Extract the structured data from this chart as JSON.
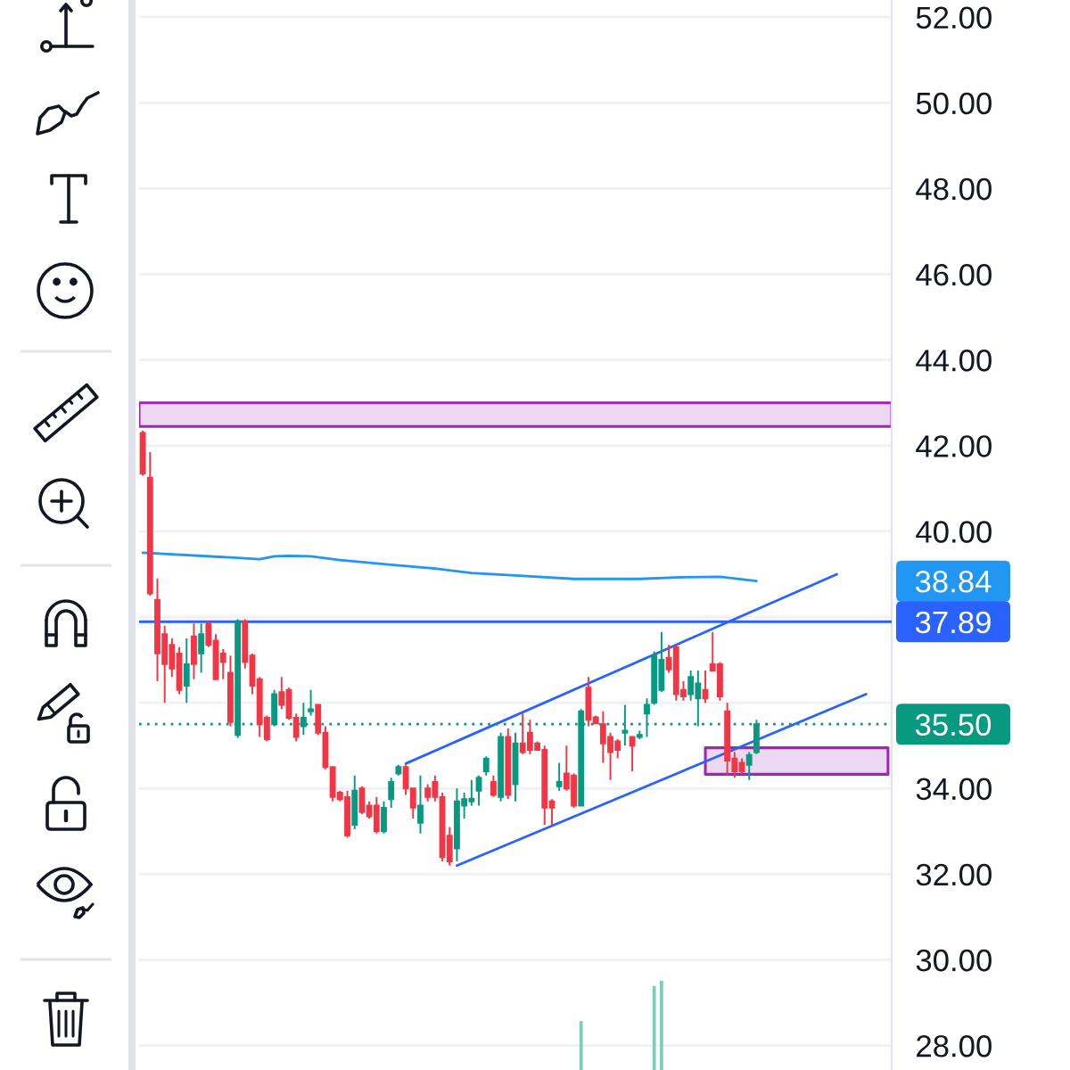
{
  "chart_data": {
    "type": "candlestick",
    "categories": [
      null,
      null,
      null,
      null,
      null,
      null,
      null,
      null,
      null,
      null,
      null,
      null,
      null,
      null,
      null,
      null,
      null,
      null,
      null,
      null,
      null,
      null,
      null,
      null,
      null,
      null,
      null,
      null,
      null,
      null,
      null,
      null,
      null,
      null,
      null,
      null,
      null,
      null,
      null,
      null,
      null,
      null,
      null,
      null,
      null,
      null,
      null,
      null,
      null,
      null,
      null,
      null,
      null,
      null,
      null,
      null,
      null,
      null,
      null,
      null,
      null,
      null,
      null,
      null,
      null,
      null,
      null,
      null,
      null,
      null,
      null,
      null,
      null,
      null,
      null,
      null,
      null,
      null,
      null,
      null,
      null,
      null,
      null,
      null,
      null,
      null,
      null,
      null,
      null,
      null,
      null,
      null,
      null,
      null,
      null,
      null,
      null,
      null,
      null,
      null,
      null,
      null,
      null
    ],
    "ohlc": [
      [
        42.3,
        42.35,
        41.3,
        41.35
      ],
      [
        41.25,
        41.85,
        38.5,
        38.55
      ],
      [
        38.4,
        38.9,
        36.5,
        37.15
      ],
      [
        37.6,
        37.8,
        36.0,
        36.9
      ],
      [
        37.35,
        37.5,
        36.6,
        36.8
      ],
      [
        37.15,
        37.3,
        36.2,
        36.3
      ],
      [
        36.4,
        37.5,
        36.0,
        36.9
      ],
      [
        37.55,
        37.85,
        36.55,
        36.9
      ],
      [
        37.15,
        37.85,
        36.7,
        37.6
      ],
      [
        37.85,
        37.9,
        37.3,
        37.35
      ],
      [
        37.45,
        37.6,
        36.55,
        36.55
      ],
      [
        37.15,
        37.25,
        36.55,
        36.95
      ],
      [
        36.7,
        37.1,
        35.45,
        35.55
      ],
      [
        35.25,
        37.95,
        35.18,
        37.9
      ],
      [
        37.9,
        37.95,
        36.8,
        36.95
      ],
      [
        37.1,
        37.15,
        36.2,
        36.4
      ],
      [
        36.55,
        36.6,
        35.2,
        35.5
      ],
      [
        35.65,
        35.7,
        35.1,
        35.15
      ],
      [
        35.5,
        36.3,
        35.45,
        36.2
      ],
      [
        36.25,
        36.6,
        35.85,
        35.95
      ],
      [
        36.3,
        36.35,
        35.6,
        35.65
      ],
      [
        35.65,
        35.75,
        35.1,
        35.2
      ],
      [
        35.45,
        36.0,
        35.25,
        35.65
      ],
      [
        35.8,
        36.3,
        35.7,
        35.85
      ],
      [
        35.95,
        35.95,
        35.25,
        35.3
      ],
      [
        35.3,
        35.45,
        34.45,
        34.5
      ],
      [
        34.5,
        34.5,
        33.7,
        33.8
      ],
      [
        33.9,
        33.95,
        33.7,
        33.75
      ],
      [
        33.8,
        33.95,
        32.85,
        32.9
      ],
      [
        33.15,
        34.3,
        33.05,
        33.95
      ],
      [
        34.0,
        34.05,
        33.4,
        33.45
      ],
      [
        33.6,
        33.7,
        33.3,
        33.35
      ],
      [
        33.6,
        33.8,
        32.95,
        33.0
      ],
      [
        33.0,
        33.7,
        32.95,
        33.55
      ],
      [
        33.75,
        34.25,
        33.55,
        34.15
      ],
      [
        34.35,
        34.55,
        34.3,
        34.5
      ],
      [
        34.5,
        34.55,
        33.85,
        34.0
      ],
      [
        34.0,
        34.0,
        33.3,
        33.55
      ],
      [
        33.2,
        34.3,
        32.95,
        33.6
      ],
      [
        34.0,
        34.1,
        33.7,
        33.8
      ],
      [
        34.15,
        34.3,
        33.7,
        33.8
      ],
      [
        33.8,
        33.9,
        32.3,
        32.4
      ],
      [
        32.9,
        33.1,
        32.2,
        32.3
      ],
      [
        32.6,
        34.0,
        32.3,
        33.7
      ],
      [
        33.6,
        33.9,
        33.3,
        33.75
      ],
      [
        33.7,
        34.2,
        33.6,
        33.76
      ],
      [
        33.95,
        34.3,
        33.6,
        34.25
      ],
      [
        34.4,
        34.75,
        34.3,
        34.7
      ],
      [
        34.15,
        34.3,
        33.8,
        33.85
      ],
      [
        33.8,
        35.3,
        33.7,
        35.2
      ],
      [
        35.2,
        35.4,
        33.75,
        33.85
      ],
      [
        34.1,
        35.3,
        33.7,
        35.05
      ],
      [
        35.05,
        35.75,
        34.8,
        34.85
      ],
      [
        35.3,
        35.6,
        34.8,
        34.9
      ],
      [
        35.05,
        35.1,
        34.9,
        34.9
      ],
      [
        34.9,
        35.0,
        33.15,
        33.55
      ],
      [
        33.7,
        33.75,
        33.15,
        33.55
      ],
      [
        34.05,
        34.6,
        33.95,
        34.15
      ],
      [
        34.35,
        35.0,
        33.95,
        34.0
      ],
      [
        34.3,
        34.35,
        33.55,
        33.6
      ],
      [
        33.6,
        35.85,
        33.6,
        35.8
      ],
      [
        36.35,
        36.6,
        35.45,
        35.6
      ],
      [
        35.66,
        35.7,
        35.5,
        35.52
      ],
      [
        35.5,
        35.8,
        34.6,
        35.05
      ],
      [
        35.2,
        35.3,
        34.2,
        34.85
      ],
      [
        35.1,
        35.15,
        34.7,
        34.9
      ],
      [
        35.3,
        35.95,
        35.0,
        35.35
      ],
      [
        35.2,
        35.2,
        34.4,
        35.0
      ],
      [
        35.2,
        35.35,
        35.15,
        35.25
      ],
      [
        35.75,
        36.1,
        35.2,
        35.95
      ],
      [
        36.0,
        37.2,
        35.95,
        37.1
      ],
      [
        36.3,
        37.65,
        36.25,
        37.0
      ],
      [
        37.05,
        37.35,
        36.7,
        36.78
      ],
      [
        37.3,
        37.35,
        36.05,
        36.2
      ],
      [
        36.3,
        36.5,
        36.05,
        36.15
      ],
      [
        36.2,
        36.75,
        36.05,
        36.6
      ],
      [
        36.1,
        36.75,
        35.45,
        36.45
      ],
      [
        36.3,
        36.75,
        36.0,
        36.1
      ],
      [
        36.9,
        37.65,
        36.75,
        36.75
      ],
      [
        36.9,
        36.95,
        36.05,
        36.15
      ],
      [
        35.8,
        36.0,
        34.3,
        34.65
      ],
      [
        34.7,
        34.85,
        34.25,
        34.4
      ],
      [
        34.6,
        34.7,
        34.35,
        34.4
      ],
      [
        34.55,
        34.85,
        34.2,
        34.78
      ],
      [
        34.85,
        35.6,
        34.8,
        35.5
      ],
      null,
      null,
      null,
      null,
      null,
      null,
      null,
      null,
      null,
      null,
      null,
      null,
      null,
      null,
      null,
      null,
      null,
      null
    ],
    "colors": [
      "#f23645",
      "#f23645",
      "#f23645",
      "#f23645",
      "#f23645",
      "#f23645",
      "#089981",
      "#f23645",
      "#089981",
      "#f23645",
      "#f23645",
      "#f23645",
      "#f23645",
      "#089981",
      "#f23645",
      "#f23645",
      "#f23645",
      "#f23645",
      "#089981",
      "#f23645",
      "#f23645",
      "#f23645",
      "#089981",
      "#089981",
      "#f23645",
      "#f23645",
      "#f23645",
      "#f23645",
      "#f23645",
      "#089981",
      "#f23645",
      "#f23645",
      "#f23645",
      "#089981",
      "#089981",
      "#089981",
      "#f23645",
      "#f23645",
      "#089981",
      "#f23645",
      "#f23645",
      "#f23645",
      "#f23645",
      "#089981",
      "#089981",
      "#089981",
      "#089981",
      "#089981",
      "#f23645",
      "#089981",
      "#f23645",
      "#089981",
      "#f23645",
      "#f23645",
      "#f23645",
      "#f23645",
      "#f23645",
      "#089981",
      "#f23645",
      "#f23645",
      "#089981",
      "#f23645",
      "#f23645",
      "#f23645",
      "#f23645",
      "#f23645",
      "#089981",
      "#f23645",
      "#089981",
      "#089981",
      "#089981",
      "#089981",
      "#f23645",
      "#f23645",
      "#f23645",
      "#089981",
      "#089981",
      "#f23645",
      "#f23645",
      "#f23645",
      "#f23645",
      "#f23645",
      "#f23645",
      "#089981",
      "#089981",
      null,
      null,
      null,
      null,
      null,
      null,
      null,
      null,
      null,
      null,
      null,
      null,
      null,
      null,
      null,
      null,
      null,
      null
    ],
    "series": [
      {
        "type": "line",
        "color": "#2196f3",
        "values": [
          39.5,
          null,
          null,
          null,
          null,
          null,
          null,
          null,
          null,
          null,
          null,
          39.4,
          null,
          null,
          null,
          null,
          39.35,
          null,
          39.42,
          null,
          39.43,
          null,
          null,
          39.42,
          null,
          null,
          null,
          39.33,
          null,
          null,
          null,
          null,
          null,
          null,
          39.22,
          null,
          null,
          null,
          null,
          null,
          39.13,
          null,
          null,
          null,
          null,
          39.03,
          null,
          null,
          null,
          null,
          null,
          38.97,
          null,
          null,
          null,
          null,
          null,
          null,
          null,
          38.89,
          null,
          null,
          null,
          null,
          null,
          null,
          null,
          null,
          38.89,
          null,
          null,
          null,
          null,
          null,
          38.93,
          null,
          null,
          null,
          null,
          38.94,
          null,
          null,
          null,
          null,
          38.84,
          null,
          null,
          null,
          null,
          null,
          null,
          null,
          null,
          null,
          null,
          null,
          null,
          null,
          null,
          null,
          null,
          null,
          null
        ]
      },
      {
        "type": "line",
        "color": "#2962ff",
        "values": [
          null,
          null,
          null,
          null,
          null,
          null,
          null,
          null,
          null,
          null,
          null,
          null,
          null,
          null,
          null,
          null,
          null,
          null,
          null,
          null,
          null,
          null,
          null,
          null,
          null,
          null,
          null,
          null,
          null,
          null,
          null,
          null,
          null,
          null,
          null,
          null,
          34.58,
          null,
          null,
          null,
          null,
          null,
          null,
          null,
          null,
          null,
          null,
          null,
          null,
          null,
          null,
          null,
          null,
          null,
          null,
          null,
          null,
          null,
          null,
          null,
          null,
          null,
          null,
          null,
          null,
          null,
          null,
          null,
          null,
          null,
          null,
          null,
          null,
          null,
          null,
          null,
          null,
          null,
          null,
          null,
          null,
          null,
          null,
          null,
          null,
          null,
          null,
          null,
          null,
          null,
          null,
          null,
          null,
          null,
          null,
          39.0,
          null,
          null,
          null,
          null,
          null,
          null,
          null
        ]
      },
      {
        "type": "line",
        "color": "#2962ff",
        "values": [
          null,
          null,
          null,
          null,
          null,
          null,
          null,
          null,
          null,
          null,
          null,
          null,
          null,
          null,
          null,
          null,
          null,
          null,
          null,
          null,
          null,
          null,
          null,
          null,
          null,
          null,
          null,
          null,
          null,
          null,
          null,
          null,
          null,
          null,
          null,
          null,
          null,
          null,
          null,
          null,
          null,
          null,
          null,
          32.2,
          null,
          null,
          null,
          null,
          null,
          null,
          null,
          null,
          null,
          null,
          null,
          null,
          null,
          null,
          null,
          null,
          null,
          null,
          null,
          null,
          null,
          null,
          null,
          null,
          null,
          null,
          null,
          null,
          null,
          null,
          null,
          null,
          null,
          null,
          null,
          null,
          null,
          null,
          null,
          null,
          null,
          null,
          null,
          null,
          null,
          null,
          null,
          null,
          null,
          null,
          null,
          null,
          null,
          null,
          null,
          36.2,
          null,
          null,
          null
        ]
      },
      {
        "type": "line",
        "color": "#9c27b0",
        "values": [
          null,
          null,
          null,
          null,
          null,
          null,
          null,
          null,
          null,
          null,
          null,
          null,
          null,
          null,
          null,
          null,
          null,
          null,
          null,
          null,
          null,
          null,
          null,
          null,
          null,
          null,
          null,
          null,
          null,
          null,
          null,
          null,
          null,
          null,
          null,
          null,
          null,
          null,
          null,
          null,
          null,
          null,
          null,
          null,
          null,
          null,
          null,
          null,
          null,
          null,
          null,
          null,
          null,
          null,
          null,
          null,
          null,
          null,
          null,
          null,
          null,
          null,
          null,
          null,
          null,
          null,
          null,
          null,
          null,
          null,
          null,
          null,
          null,
          null,
          null,
          null,
          null,
          null,
          null,
          null,
          null,
          null,
          null,
          null,
          null,
          null,
          null,
          null,
          null,
          null,
          null,
          null,
          null,
          null,
          null,
          null,
          null,
          null,
          null,
          null,
          null,
          null,
          null
        ],
        "upper": [
          null,
          null,
          null,
          null,
          null,
          null,
          null,
          null,
          null,
          null,
          null,
          null,
          null,
          null,
          null,
          null,
          null,
          null,
          null,
          null,
          null,
          null,
          null,
          null,
          null,
          null,
          null,
          null,
          null,
          null,
          null,
          null,
          null,
          null,
          null,
          null,
          null,
          null,
          null,
          null,
          null,
          null,
          null,
          null,
          null,
          null,
          null,
          null,
          null,
          null,
          null,
          null,
          null,
          null,
          null,
          null,
          null,
          null,
          null,
          null,
          null,
          null,
          null,
          null,
          null,
          null,
          null,
          null,
          null,
          null,
          null,
          null,
          null,
          null,
          null,
          null,
          null,
          34.95,
          34.95,
          34.95,
          34.95,
          34.95,
          34.95,
          34.95,
          34.95,
          34.95,
          34.95,
          34.95,
          34.95,
          34.95,
          34.95,
          34.95,
          34.95,
          34.95,
          34.95,
          34.95,
          34.95,
          34.95,
          34.95,
          34.95,
          34.95,
          34.95,
          34.95
        ],
        "lower": [
          null,
          null,
          null,
          null,
          null,
          null,
          null,
          null,
          null,
          null,
          null,
          null,
          null,
          null,
          null,
          null,
          null,
          null,
          null,
          null,
          null,
          null,
          null,
          null,
          null,
          null,
          null,
          null,
          null,
          null,
          null,
          null,
          null,
          null,
          null,
          null,
          null,
          null,
          null,
          null,
          null,
          null,
          null,
          null,
          null,
          null,
          null,
          null,
          null,
          null,
          null,
          null,
          null,
          null,
          null,
          null,
          null,
          null,
          null,
          null,
          null,
          null,
          null,
          null,
          null,
          null,
          null,
          null,
          null,
          null,
          null,
          null,
          null,
          null,
          null,
          null,
          null,
          34.33,
          34.33,
          34.33,
          34.33,
          34.33,
          34.33,
          34.33,
          34.33,
          34.33,
          34.33,
          34.33,
          34.33,
          34.33,
          34.33,
          34.33,
          34.33,
          34.33,
          34.33,
          34.33,
          34.33,
          34.33,
          34.33,
          34.33,
          34.33,
          34.33,
          34.33
        ]
      },
      {
        "type": "bar",
        "color": "#7ecbb8",
        "values": [
          null,
          null,
          null,
          null,
          null,
          null,
          null,
          null,
          null,
          null,
          null,
          null,
          null,
          null,
          null,
          null,
          null,
          null,
          null,
          null,
          null,
          null,
          null,
          null,
          null,
          null,
          null,
          null,
          null,
          null,
          null,
          null,
          null,
          null,
          null,
          null,
          null,
          null,
          null,
          null,
          null,
          null,
          null,
          null,
          null,
          null,
          null,
          null,
          null,
          null,
          null,
          null,
          null,
          null,
          null,
          null,
          null,
          null,
          null,
          null,
          28.57,
          null,
          null,
          null,
          null,
          null,
          null,
          null,
          null,
          null,
          29.39,
          29.51,
          null,
          null,
          null,
          null,
          null,
          null,
          null,
          null,
          null,
          null,
          null,
          null,
          null,
          null,
          null,
          null,
          null,
          null,
          null,
          null,
          null,
          null,
          null,
          null,
          null,
          null,
          null,
          null,
          null,
          null,
          null
        ]
      }
    ],
    "annotations": [
      "38.84"
    ],
    "ref_lines": [
      {
        "axis": "y",
        "value": 37.89,
        "label": "37.89",
        "color": "#2962ff",
        "line_style": "solid"
      },
      {
        "axis": "y",
        "value": 35.5,
        "label": "35.50",
        "color": "#089981",
        "line_style": "dotted"
      }
    ],
    "bands": [
      {
        "axis": "y",
        "from": 42.45,
        "to": 43.0,
        "color": "#9c27b0"
      }
    ],
    "ylim": [
      27.43,
      52.4
    ],
    "yticks": [
      {
        "value": 28,
        "label": "28.00"
      },
      {
        "value": 30,
        "label": "30.00"
      },
      {
        "value": 32,
        "label": "32.00"
      },
      {
        "value": 34,
        "label": "34.00"
      },
      {
        "value": 36,
        "label": null
      },
      {
        "value": 38,
        "label": null
      },
      {
        "value": 40,
        "label": "40.00"
      },
      {
        "value": 42,
        "label": "42.00"
      },
      {
        "value": 44,
        "label": "44.00"
      },
      {
        "value": 46,
        "label": "46.00"
      },
      {
        "value": 48,
        "label": "48.00"
      },
      {
        "value": 50,
        "label": "50.00"
      },
      {
        "value": 52,
        "label": "52.00"
      }
    ],
    "grid": "y",
    "tick_labels": "y"
  }
}
